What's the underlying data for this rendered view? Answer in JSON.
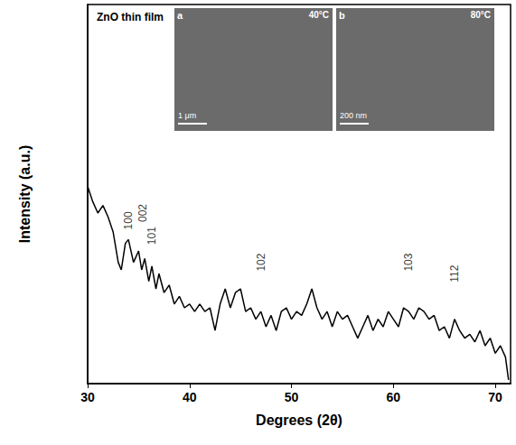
{
  "chart_data": {
    "type": "line",
    "title": "ZnO thin film",
    "x_label": "Degrees (2θ)",
    "y_label": "Intensity (a.u.)",
    "x": [
      30,
      30.5,
      31,
      31.5,
      32,
      32.5,
      33,
      33.3,
      33.7,
      34,
      34.5,
      35,
      35.3,
      35.6,
      36,
      36.3,
      36.7,
      37,
      37.5,
      38,
      38.5,
      39,
      39.5,
      40,
      40.5,
      41,
      41.5,
      42,
      42.5,
      43,
      43.5,
      44,
      44.5,
      45,
      45.5,
      46,
      46.5,
      47,
      47.5,
      48,
      48.5,
      49,
      49.5,
      50,
      50.5,
      51,
      51.5,
      52,
      52.5,
      53,
      53.5,
      54,
      54.5,
      55,
      55.5,
      56,
      56.5,
      57,
      57.5,
      58,
      58.5,
      59,
      59.5,
      60,
      60.5,
      61,
      61.5,
      62,
      62.5,
      63,
      63.5,
      64,
      64.5,
      65,
      65.5,
      66,
      66.5,
      67,
      67.5,
      68,
      68.5,
      69,
      69.5,
      70,
      70.5,
      71,
      71.3
    ],
    "values": [
      52,
      48,
      45,
      47,
      44,
      40,
      32,
      30,
      37,
      38,
      32,
      35,
      30,
      33,
      27,
      31,
      25,
      29,
      24,
      26,
      21,
      23,
      20,
      21,
      19,
      21,
      19,
      20,
      14,
      21,
      25,
      20,
      24,
      25,
      19,
      20,
      17,
      19,
      15,
      18,
      14,
      19,
      20,
      17,
      19,
      18,
      21,
      25,
      20,
      17,
      19,
      15,
      19,
      17,
      18,
      15,
      12,
      15,
      18,
      14,
      17,
      15,
      19,
      17,
      15,
      20,
      19,
      17,
      20,
      19,
      17,
      18,
      14,
      15,
      12,
      17,
      14,
      12,
      13,
      11,
      14,
      10,
      12,
      8,
      10,
      7,
      1
    ],
    "color": "#000000",
    "xlim": [
      30,
      71.5
    ],
    "xticks": [
      30,
      40,
      50,
      60,
      70
    ],
    "ylim": [
      0,
      100
    ],
    "tick_labels": "x",
    "grid": false,
    "annotations": [
      {
        "text": "100",
        "x": 34,
        "y": 43
      },
      {
        "text": "002",
        "x": 35.4,
        "y": 45
      },
      {
        "text": "101",
        "x": 36.3,
        "y": 39
      },
      {
        "text": "102",
        "x": 47,
        "y": 32
      },
      {
        "text": "103",
        "x": 61.5,
        "y": 32
      },
      {
        "text": "112",
        "x": 66,
        "y": 29
      }
    ],
    "insets": [
      {
        "label": "a",
        "temperature": "40°C",
        "scale_bar": "1 μm"
      },
      {
        "label": "b",
        "temperature": "80°C",
        "scale_bar": "200 nm"
      }
    ]
  }
}
